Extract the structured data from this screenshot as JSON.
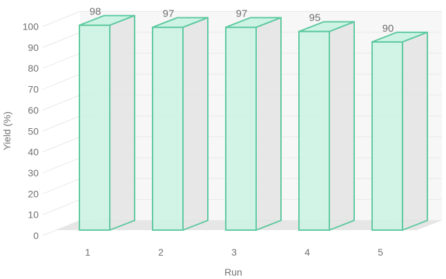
{
  "chart_data": {
    "type": "bar",
    "style": "3d-column",
    "categories": [
      "1",
      "2",
      "3",
      "4",
      "5"
    ],
    "values": [
      98,
      97,
      97,
      95,
      90
    ],
    "data_labels": [
      "98",
      "97",
      "97",
      "95",
      "90"
    ],
    "xlabel": "Run",
    "ylabel": "Yield (%)",
    "ylim": [
      0,
      100
    ],
    "yticks": [
      "0",
      "10",
      "20",
      "30",
      "40",
      "50",
      "60",
      "70",
      "80",
      "90",
      "100"
    ],
    "grid": true,
    "legend": "none",
    "colors": {
      "bar_fill": "#cdf3e4",
      "bar_side": "#e4e4e4",
      "bar_edge": "#5ec9a0",
      "floor": "#e6e6e6",
      "wall": "#f7f7f7",
      "gridline": "#e8e8e8",
      "text": "#707070"
    }
  }
}
